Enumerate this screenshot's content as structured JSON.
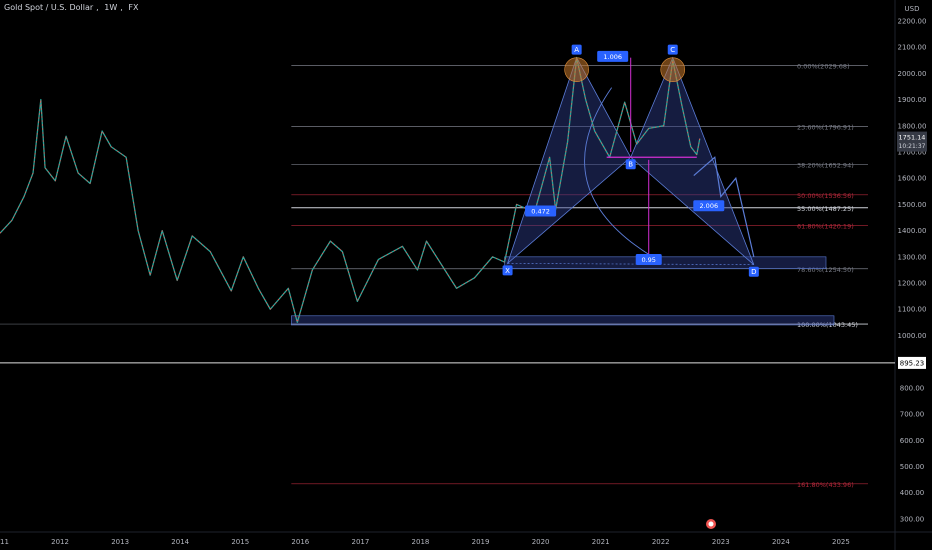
{
  "header": {
    "symbol": "Gold Spot / U.S. Dollar",
    "interval": "1W",
    "exchange": "FX",
    "currency": "USD"
  },
  "colors": {
    "background": "#000000",
    "axis_text": "#b2b5be",
    "fib_gray": "#787b86",
    "fib_red": "#b2283a",
    "pattern_fill": "#2e3f8f",
    "pattern_line": "#5b7cd6",
    "marker_blue": "#2962ff",
    "magenta": "#d32fd3",
    "orange": "#c8782a",
    "candle_up": "#26a69a",
    "candle_down": "#ef5350",
    "price_tag_bg": "#363a45"
  },
  "chart_data": {
    "type": "candlestick",
    "y_range": [
      250,
      2280
    ],
    "x_range": [
      2011.0,
      2025.9
    ],
    "y_ticks": [
      300,
      400,
      500,
      600,
      700,
      800,
      900,
      1000,
      1100,
      1200,
      1300,
      1400,
      1500,
      1600,
      1700,
      1800,
      1900,
      2000,
      2100,
      2200
    ],
    "x_ticks": [
      "2011",
      "2012",
      "2013",
      "2014",
      "2015",
      "2016",
      "2017",
      "2018",
      "2019",
      "2020",
      "2021",
      "2022",
      "2023",
      "2024",
      "2025"
    ],
    "price_path": [
      [
        2011.0,
        1390
      ],
      [
        2011.2,
        1440
      ],
      [
        2011.4,
        1530
      ],
      [
        2011.55,
        1620
      ],
      [
        2011.68,
        1900
      ],
      [
        2011.75,
        1640
      ],
      [
        2011.92,
        1590
      ],
      [
        2012.1,
        1760
      ],
      [
        2012.3,
        1620
      ],
      [
        2012.5,
        1580
      ],
      [
        2012.7,
        1780
      ],
      [
        2012.85,
        1720
      ],
      [
        2013.1,
        1680
      ],
      [
        2013.3,
        1400
      ],
      [
        2013.5,
        1230
      ],
      [
        2013.7,
        1400
      ],
      [
        2013.95,
        1210
      ],
      [
        2014.2,
        1380
      ],
      [
        2014.5,
        1320
      ],
      [
        2014.85,
        1170
      ],
      [
        2015.05,
        1300
      ],
      [
        2015.3,
        1180
      ],
      [
        2015.5,
        1100
      ],
      [
        2015.8,
        1180
      ],
      [
        2015.95,
        1050
      ],
      [
        2016.2,
        1250
      ],
      [
        2016.5,
        1360
      ],
      [
        2016.7,
        1320
      ],
      [
        2016.95,
        1130
      ],
      [
        2017.3,
        1290
      ],
      [
        2017.7,
        1340
      ],
      [
        2017.95,
        1250
      ],
      [
        2018.1,
        1360
      ],
      [
        2018.6,
        1180
      ],
      [
        2018.9,
        1220
      ],
      [
        2019.2,
        1300
      ],
      [
        2019.4,
        1280
      ],
      [
        2019.6,
        1500
      ],
      [
        2019.9,
        1470
      ],
      [
        2020.15,
        1680
      ],
      [
        2020.25,
        1480
      ],
      [
        2020.45,
        1740
      ],
      [
        2020.6,
        2060
      ],
      [
        2020.75,
        1900
      ],
      [
        2020.9,
        1780
      ],
      [
        2021.15,
        1680
      ],
      [
        2021.4,
        1890
      ],
      [
        2021.6,
        1730
      ],
      [
        2021.8,
        1790
      ],
      [
        2022.05,
        1800
      ],
      [
        2022.2,
        2050
      ],
      [
        2022.35,
        1880
      ],
      [
        2022.5,
        1720
      ],
      [
        2022.6,
        1690
      ],
      [
        2022.65,
        1751.14
      ]
    ],
    "last_price": "1751.14",
    "countdown": "10:21:37",
    "cross_level": "895.23",
    "fib_levels": [
      {
        "label": "0.00%(2029.68)",
        "price": 2029.68,
        "color": "gray"
      },
      {
        "label": "23.60%(1796.91)",
        "price": 1796.91,
        "color": "gray"
      },
      {
        "label": "38.20%(1652.94)",
        "price": 1652.94,
        "color": "gray"
      },
      {
        "label": "50.00%(1536.56)",
        "price": 1536.56,
        "color": "red"
      },
      {
        "label": "55.00%(1487.25)",
        "price": 1487.25,
        "color": "white"
      },
      {
        "label": "61.80%(1420.19)",
        "price": 1420.19,
        "color": "red"
      },
      {
        "label": "78.60%(1254.50)",
        "price": 1254.5,
        "color": "gray"
      },
      {
        "label": "100.00%(1043.45)",
        "price": 1043.45,
        "color": "white"
      },
      {
        "label": "161.80%(433.96)",
        "price": 433.96,
        "color": "red"
      }
    ],
    "pattern_points": [
      {
        "label": "X",
        "x": 2019.45,
        "price": 1275
      },
      {
        "label": "A",
        "x": 2020.6,
        "price": 2060
      },
      {
        "label": "B",
        "x": 2021.5,
        "price": 1680
      },
      {
        "label": "C",
        "x": 2022.2,
        "price": 2060
      },
      {
        "label": "D",
        "x": 2023.55,
        "price": 1270
      }
    ],
    "ratios": [
      {
        "label": "1.006",
        "x": 2021.2,
        "price": 2065
      },
      {
        "label": "0.472",
        "x": 2020.0,
        "price": 1475
      },
      {
        "label": "2.006",
        "x": 2022.8,
        "price": 1495
      },
      {
        "label": "0.95",
        "x": 2021.8,
        "price": 1290
      }
    ]
  }
}
